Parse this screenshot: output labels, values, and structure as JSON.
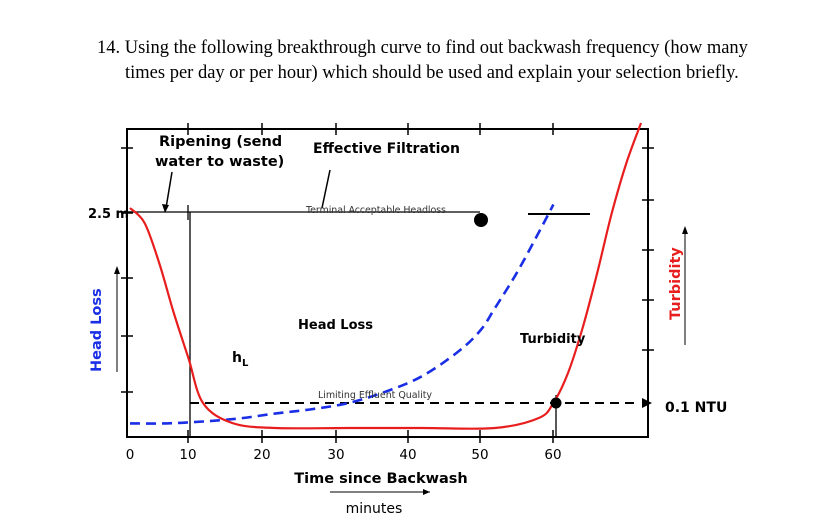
{
  "question": {
    "line1": "14. Using the following breakthrough curve to find out backwash frequency (how many",
    "line2": "times per day or per hour) which should be used and explain your selection briefly."
  },
  "chart_data": {
    "type": "line",
    "xlabel": "Time since Backwash",
    "xlabel_sub": "minutes",
    "ylabel_left": "Head Loss",
    "ylabel_right": "Turbidity",
    "x_ticks": [
      "0",
      "10",
      "20",
      "30",
      "40",
      "50",
      "60"
    ],
    "xlim": [
      0,
      70
    ],
    "y_left_label": "2.5 m",
    "y_right_label": "0.1 NTU",
    "series": [
      {
        "name": "Head Loss",
        "color": "#1a2ee6",
        "style": "dashed",
        "points": [
          [
            0,
            0.22
          ],
          [
            5,
            0.22
          ],
          [
            10,
            0.25
          ],
          [
            15,
            0.3
          ],
          [
            20,
            0.38
          ],
          [
            25,
            0.45
          ],
          [
            30,
            0.55
          ],
          [
            35,
            0.73
          ],
          [
            40,
            0.98
          ],
          [
            45,
            1.38
          ],
          [
            48,
            1.72
          ],
          [
            50,
            2.08
          ],
          [
            53,
            2.65
          ],
          [
            56,
            3.3
          ],
          [
            58,
            3.75
          ]
        ]
      },
      {
        "name": "Turbidity",
        "color": "#e81e1e",
        "style": "solid",
        "points": [
          [
            0,
            0.195
          ],
          [
            2,
            0.18
          ],
          [
            4,
            0.14
          ],
          [
            6,
            0.09
          ],
          [
            8,
            0.045
          ],
          [
            10,
            0.0
          ],
          [
            14,
            -0.02
          ],
          [
            20,
            -0.025
          ],
          [
            30,
            -0.025
          ],
          [
            40,
            -0.025
          ],
          [
            50,
            -0.025
          ],
          [
            56,
            -0.015
          ],
          [
            58,
            0.0
          ],
          [
            60,
            0.03
          ],
          [
            62,
            0.075
          ],
          [
            64,
            0.13
          ],
          [
            66,
            0.19
          ],
          [
            68,
            0.24
          ],
          [
            70,
            0.28
          ]
        ]
      }
    ],
    "annotations": {
      "ripening": "Ripening (send\nwater to waste)",
      "effective": "Effective Filtration",
      "terminal": "Terminal Acceptable Headloss",
      "limiting": "Limiting Effluent Quality",
      "headloss_label": "Head Loss",
      "turbidity_label": "Turbidity",
      "hl_symbol": "h",
      "hl_sub": "L"
    }
  }
}
